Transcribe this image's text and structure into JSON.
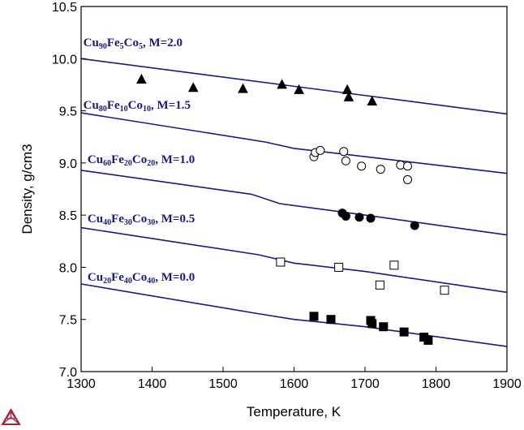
{
  "chart_data": {
    "type": "line",
    "title": "",
    "xlabel": "Temperature, K",
    "ylabel": "Density, g/cm3",
    "xlim": [
      1300,
      1900
    ],
    "ylim": [
      7.0,
      10.5
    ],
    "xticks": [
      "1300",
      "1400",
      "1500",
      "1600",
      "1700",
      "1800",
      "1900"
    ],
    "yticks": [
      "7.0",
      "7.5",
      "8.0",
      "8.5",
      "9.0",
      "9.5",
      "10.0",
      "10.5"
    ],
    "grid": false,
    "line_color": "#1a1a80",
    "series": [
      {
        "name": "Cu90Fe5Co5, M=2.0",
        "label_parts": [
          [
            "Cu",
            ""
          ],
          [
            "90",
            "sub"
          ],
          [
            "Fe",
            ""
          ],
          [
            "5",
            "sub"
          ],
          [
            "Co",
            ""
          ],
          [
            "5",
            "sub"
          ],
          [
            ", M=2.0",
            ""
          ]
        ],
        "curve": [
          [
            1300,
            10.0
          ],
          [
            1900,
            9.47
          ]
        ],
        "marker": "triangle-filled",
        "points": [
          [
            1385,
            9.8
          ],
          [
            1458,
            9.72
          ],
          [
            1528,
            9.71
          ],
          [
            1583,
            9.75
          ],
          [
            1607,
            9.7
          ],
          [
            1675,
            9.7
          ],
          [
            1677,
            9.63
          ],
          [
            1710,
            9.59
          ]
        ]
      },
      {
        "name": "Cu80Fe10Co10, M=1.5",
        "label_parts": [
          [
            "Cu",
            ""
          ],
          [
            "80",
            "sub"
          ],
          [
            "Fe",
            ""
          ],
          [
            "10",
            "sub"
          ],
          [
            "Co",
            ""
          ],
          [
            "10",
            "sub"
          ],
          [
            ", M=1.5",
            ""
          ]
        ],
        "curve": [
          [
            1300,
            9.48
          ],
          [
            1560,
            9.2
          ],
          [
            1600,
            9.14
          ],
          [
            1700,
            9.06
          ],
          [
            1900,
            8.9
          ]
        ],
        "marker": "circle-open",
        "points": [
          [
            1628,
            9.06
          ],
          [
            1630,
            9.1
          ],
          [
            1637,
            9.12
          ],
          [
            1670,
            9.11
          ],
          [
            1673,
            9.02
          ],
          [
            1695,
            8.97
          ],
          [
            1722,
            8.94
          ],
          [
            1750,
            8.98
          ],
          [
            1760,
            8.97
          ],
          [
            1760,
            8.84
          ]
        ]
      },
      {
        "name": "Cu60Fe20Co20, M=1.0",
        "label_parts": [
          [
            "Cu",
            ""
          ],
          [
            "60",
            "sub"
          ],
          [
            "Fe",
            ""
          ],
          [
            "20",
            "sub"
          ],
          [
            "Co",
            ""
          ],
          [
            "20",
            "sub"
          ],
          [
            ", M=1.0",
            ""
          ]
        ],
        "curve": [
          [
            1300,
            8.93
          ],
          [
            1540,
            8.7
          ],
          [
            1580,
            8.61
          ],
          [
            1700,
            8.5
          ],
          [
            1900,
            8.31
          ]
        ],
        "marker": "circle-filled",
        "points": [
          [
            1668,
            8.52
          ],
          [
            1673,
            8.49
          ],
          [
            1692,
            8.48
          ],
          [
            1708,
            8.47
          ],
          [
            1770,
            8.4
          ]
        ]
      },
      {
        "name": "Cu40Fe30Co30, M=0.5",
        "label_parts": [
          [
            "Cu",
            ""
          ],
          [
            "40",
            "sub"
          ],
          [
            "Fe",
            ""
          ],
          [
            "30",
            "sub"
          ],
          [
            "Co",
            ""
          ],
          [
            "30",
            "sub"
          ],
          [
            ", M=0.5",
            ""
          ]
        ],
        "curve": [
          [
            1300,
            8.38
          ],
          [
            1550,
            8.12
          ],
          [
            1600,
            8.04
          ],
          [
            1700,
            7.96
          ],
          [
            1900,
            7.76
          ]
        ],
        "marker": "square-open",
        "points": [
          [
            1581,
            8.05
          ],
          [
            1663,
            8.0
          ],
          [
            1741,
            8.02
          ],
          [
            1721,
            7.83
          ],
          [
            1812,
            7.78
          ]
        ]
      },
      {
        "name": "Cu20Fe40Co40, M=0.0",
        "label_parts": [
          [
            "Cu",
            ""
          ],
          [
            "20",
            "sub"
          ],
          [
            "Fe",
            ""
          ],
          [
            "40",
            "sub"
          ],
          [
            "Co",
            ""
          ],
          [
            "40",
            "sub"
          ],
          [
            ", M=0.0",
            ""
          ]
        ],
        "curve": [
          [
            1300,
            7.84
          ],
          [
            1545,
            7.56
          ],
          [
            1600,
            7.5
          ],
          [
            1700,
            7.43
          ],
          [
            1900,
            7.24
          ]
        ],
        "marker": "square-filled",
        "points": [
          [
            1628,
            7.53
          ],
          [
            1652,
            7.5
          ],
          [
            1708,
            7.49
          ],
          [
            1710,
            7.46
          ],
          [
            1726,
            7.43
          ],
          [
            1755,
            7.38
          ],
          [
            1783,
            7.33
          ],
          [
            1789,
            7.3
          ]
        ]
      }
    ],
    "label_anchor_data": [
      [
        1303,
        10.12
      ],
      [
        1303,
        9.52
      ],
      [
        1309,
        9.0
      ],
      [
        1309,
        8.43
      ],
      [
        1309,
        7.87
      ]
    ]
  },
  "logo": {
    "name": "thermocalc-triangle-logo",
    "color": "#a0283c"
  }
}
